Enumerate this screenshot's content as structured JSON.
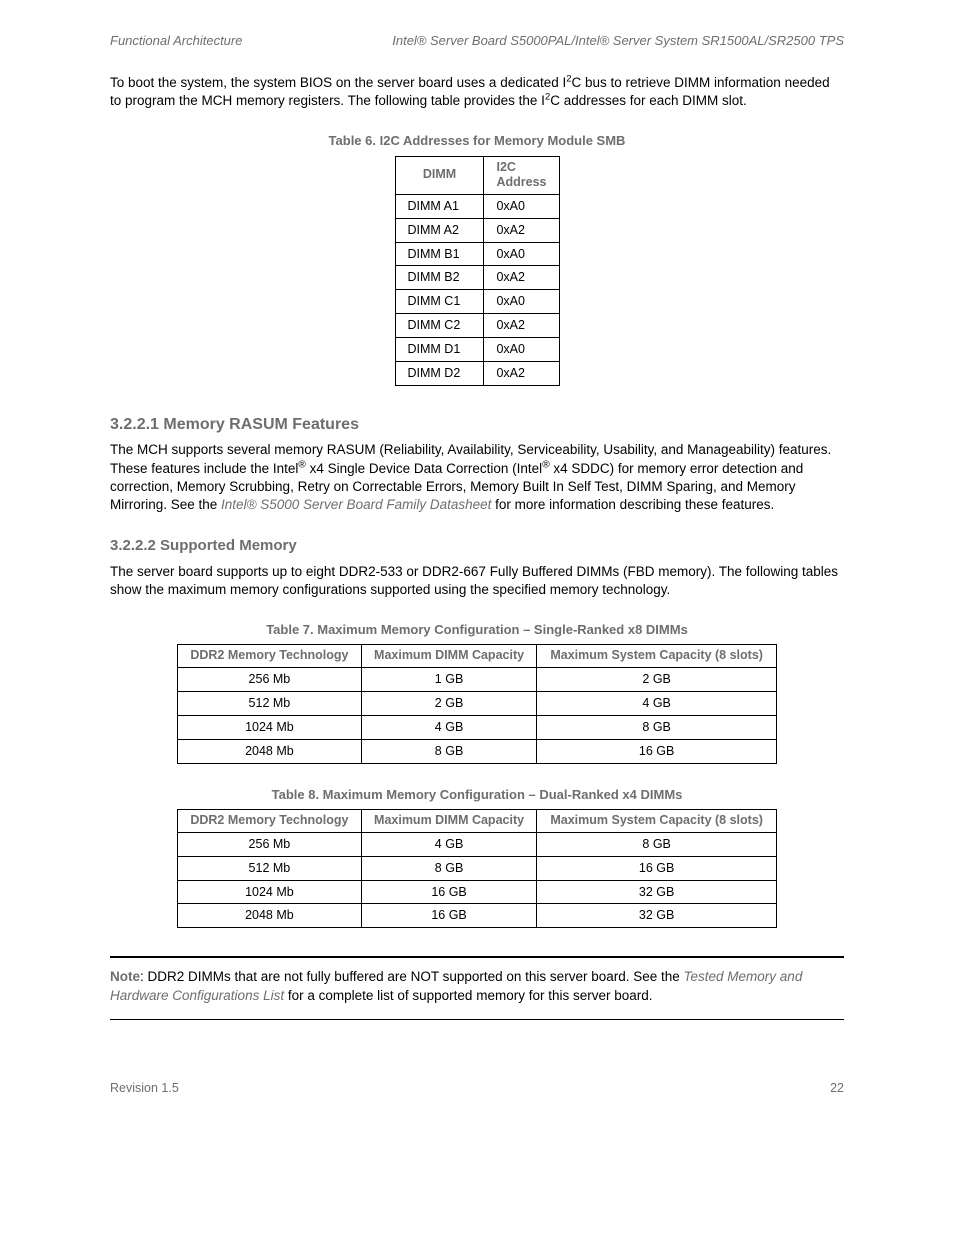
{
  "header": {
    "left": "Functional Architecture",
    "right_prefix": "Intel® Server Board S5000PAL/Intel® Server System SR1500AL/SR2500 TPS"
  },
  "intro": {
    "p1_a": "To boot the system, the system BIOS on the server board uses a dedicated I",
    "p1_sup1": "2",
    "p1_b": "C bus to retrieve DIMM information needed to program the MCH memory registers. The following table provides the I",
    "p1_sup2": "2",
    "p1_c": "C addresses for each DIMM slot."
  },
  "table6": {
    "caption": "Table 6. I2C Addresses for Memory Module SMB",
    "col1": "DIMM",
    "col2": "I2C Address",
    "rows": [
      {
        "dimm": "DIMM A1",
        "addr": "0xA0"
      },
      {
        "dimm": "DIMM A2",
        "addr": "0xA2"
      },
      {
        "dimm": "DIMM B1",
        "addr": "0xA0"
      },
      {
        "dimm": "DIMM B2",
        "addr": "0xA2"
      },
      {
        "dimm": "DIMM C1",
        "addr": "0xA0"
      },
      {
        "dimm": "DIMM C2",
        "addr": "0xA2"
      },
      {
        "dimm": "DIMM D1",
        "addr": "0xA0"
      },
      {
        "dimm": "DIMM D2",
        "addr": "0xA2"
      }
    ]
  },
  "sec_rasum": {
    "heading": "3.2.2.1 Memory RASUM Features",
    "p_a": "The MCH supports several memory RASUM (Reliability, Availability, Serviceability, Usability, and Manageability) features.  These features include the Intel",
    "p_b": " x4 Single Device Data Correction (Intel",
    "p_c": " x4 SDDC) for memory error detection and correction, Memory Scrubbing, Retry on Correctable Errors, Memory Built In Self Test, DIMM Sparing, and Memory Mirroring.  See the ",
    "ref": "Intel® S5000 Server Board Family Datasheet",
    "p_d": " for more information describing these features."
  },
  "sec_supp": {
    "heading": "3.2.2.2 Supported Memory",
    "p": "The server board supports up to eight DDR2-533 or DDR2-667 Fully Buffered DIMMs (FBD memory). The following tables show the maximum memory configurations supported using the specified memory technology."
  },
  "table7": {
    "caption": "Table 7. Maximum Memory Configuration – Single-Ranked x8 DIMMs",
    "h1": "DDR2 Memory Technology",
    "h2": "Maximum DIMM Capacity",
    "h3": "Maximum System Capacity (8 slots)",
    "rows": [
      {
        "a": "256 Mb",
        "b": "1 GB",
        "c": "2 GB"
      },
      {
        "a": "512 Mb",
        "b": "2 GB",
        "c": "4 GB"
      },
      {
        "a": "1024 Mb",
        "b": "4 GB",
        "c": "8 GB"
      },
      {
        "a": "2048 Mb",
        "b": "8 GB",
        "c": "16 GB"
      }
    ]
  },
  "table8": {
    "caption": "Table 8. Maximum Memory Configuration – Dual-Ranked x4 DIMMs",
    "h1": "DDR2 Memory Technology",
    "h2": "Maximum DIMM Capacity",
    "h3": "Maximum System Capacity (8 slots)",
    "rows": [
      {
        "a": "256 Mb",
        "b": "4 GB",
        "c": "8 GB"
      },
      {
        "a": "512 Mb",
        "b": "8 GB",
        "c": "16 GB"
      },
      {
        "a": "1024 Mb",
        "b": "16 GB",
        "c": "32 GB"
      },
      {
        "a": "2048 Mb",
        "b": "16 GB",
        "c": "32 GB"
      }
    ]
  },
  "note": {
    "label": "Note",
    "a": ": DDR2 DIMMs that are not fully buffered are NOT supported on this server board. See the ",
    "ref": "Tested Memory and Hardware Configurations List",
    "b": " for a complete list of supported memory for this server board."
  },
  "footer": {
    "rev": "Revision 1.5",
    "page": "22"
  }
}
